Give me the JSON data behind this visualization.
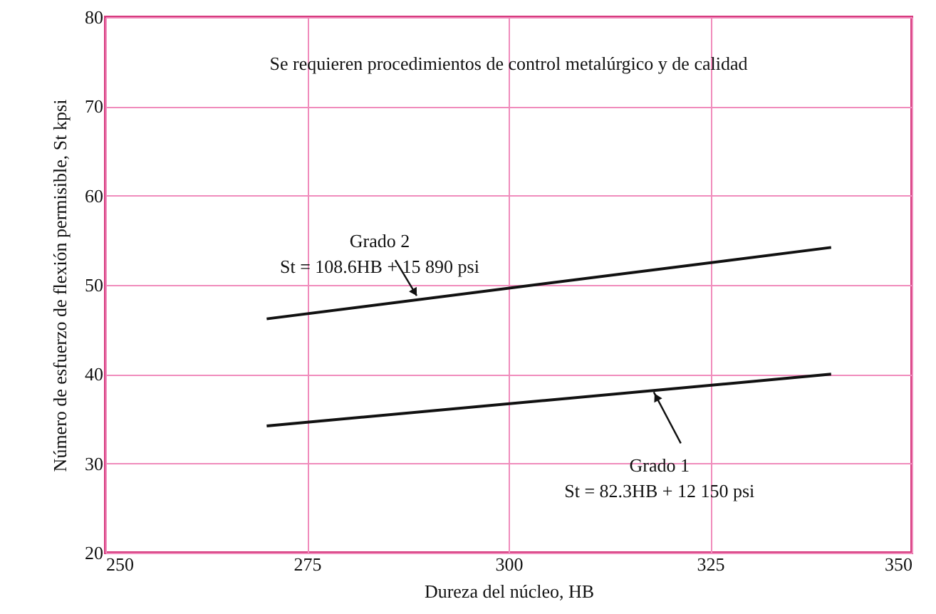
{
  "chart_data": {
    "type": "line",
    "xlabel": "Dureza del núcleo, HB",
    "ylabel": "Número de esfuerzo de flexión permisible, St kpsi",
    "xlim": [
      250,
      350
    ],
    "xticks": [
      250,
      275,
      300,
      325,
      350
    ],
    "ylim": [
      20,
      80
    ],
    "yticks": [
      20,
      30,
      40,
      50,
      60,
      70,
      80
    ],
    "grid": true,
    "marker": "none",
    "line_style": "solid",
    "x": [
      270,
      340
    ],
    "series": [
      {
        "color": "#111111",
        "values": [
          34.2,
          40.0
        ]
      },
      {
        "color": "#111111",
        "values": [
          46.2,
          54.2
        ]
      }
    ],
    "annotations": [
      {
        "text": "Grado 1\nSt = 82.3HB + 12 150 psi",
        "x": 318,
        "y": 38.0
      },
      {
        "text": "Grado 2\nSt = 108.6HB + 15 890 psi",
        "x": 288.6,
        "y": 48.8
      },
      "Se requieren procedimientos de control metalúrgico y de calidad"
    ]
  }
}
